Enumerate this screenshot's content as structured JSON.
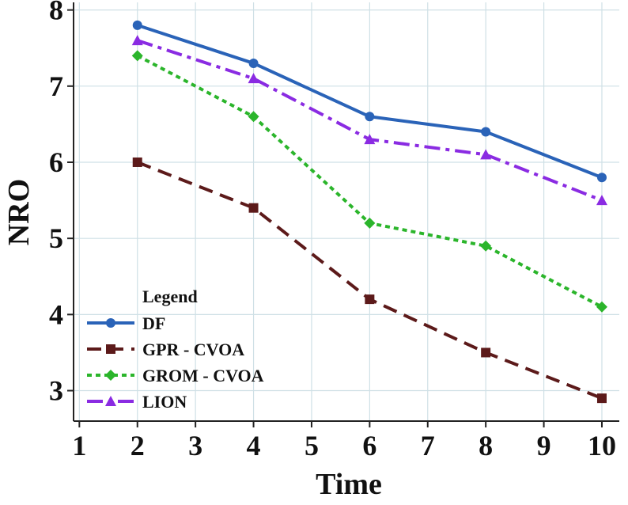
{
  "chart_data": {
    "type": "line",
    "title": "",
    "xlabel": "Time",
    "ylabel": "NRO",
    "xlim": [
      0.9,
      10.3
    ],
    "ylim": [
      2.6,
      8.1
    ],
    "xticks": [
      "1",
      "2",
      "3",
      "4",
      "5",
      "6",
      "7",
      "8",
      "9",
      "10"
    ],
    "yticks": [
      "3",
      "4",
      "5",
      "6",
      "7",
      "8"
    ],
    "grid": true,
    "legend": {
      "title": "Legend",
      "position": "bottom-left"
    },
    "x": [
      2,
      4,
      6,
      8,
      10
    ],
    "series": [
      {
        "name": "DF",
        "values": [
          7.8,
          7.3,
          6.6,
          6.4,
          5.8
        ],
        "color": "#2a63b8",
        "marker": "circle",
        "dash": "solid"
      },
      {
        "name": "GPR - CVOA",
        "values": [
          6.0,
          5.4,
          4.2,
          3.5,
          2.9
        ],
        "color": "#5c1a1a",
        "marker": "square",
        "dash": "dashed"
      },
      {
        "name": "GROM - CVOA",
        "values": [
          7.4,
          6.6,
          5.2,
          4.9,
          4.1
        ],
        "color": "#2bb52b",
        "marker": "diamond",
        "dash": "dotted"
      },
      {
        "name": "LION",
        "values": [
          7.6,
          7.1,
          6.3,
          6.1,
          5.5
        ],
        "color": "#8a2be2",
        "marker": "triangle",
        "dash": "dashdot"
      }
    ]
  }
}
